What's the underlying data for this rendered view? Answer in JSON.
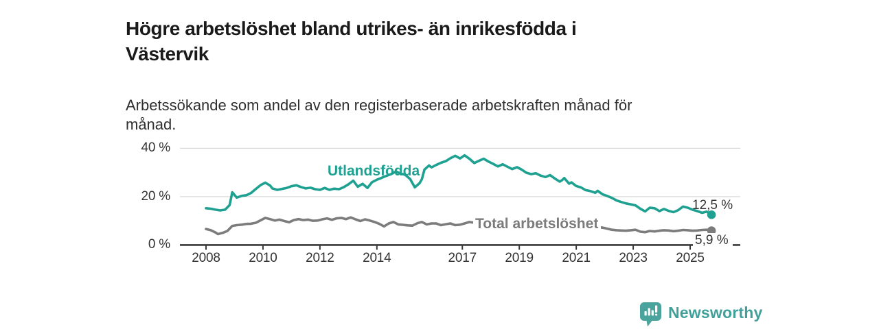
{
  "header": {
    "title_lines": [
      "Högre arbetslöshet bland utrikes- än inrikesfödda i",
      "Västervik"
    ],
    "subtitle_lines": [
      "Arbetssökande som andel av den registerbaserade arbetskraften månad för",
      "månad."
    ]
  },
  "chart_data": {
    "type": "line",
    "title": "Högre arbetslöshet bland utrikes- än inrikesfödda i Västervik",
    "subtitle": "Arbetssökande som andel av den registerbaserade arbetskraften månad för månad.",
    "unit": "%",
    "xlabel": "",
    "ylabel": "",
    "ylim": [
      0,
      40
    ],
    "grid": "horizontal",
    "legend": "inline-labels",
    "y_ticks": [
      {
        "value": 0,
        "label": "0 %"
      },
      {
        "value": 20,
        "label": "20 %"
      },
      {
        "value": 40,
        "label": "40 %"
      }
    ],
    "x_ticks": [
      {
        "value": 2008,
        "label": "2008"
      },
      {
        "value": 2010,
        "label": "2010"
      },
      {
        "value": 2012,
        "label": "2012"
      },
      {
        "value": 2014,
        "label": "2014"
      },
      {
        "value": 2017,
        "label": "2017"
      },
      {
        "value": 2019,
        "label": "2019"
      },
      {
        "value": 2021,
        "label": "2021"
      },
      {
        "value": 2023,
        "label": "2023"
      },
      {
        "value": 2025,
        "label": "2025"
      }
    ],
    "series": [
      {
        "name": "Utlandsfödda",
        "color": "#1FA191",
        "end_label": "12,5 %",
        "end_value": 12.5,
        "points": [
          [
            2008.0,
            15.2
          ],
          [
            2008.17,
            15.0
          ],
          [
            2008.33,
            14.6
          ],
          [
            2008.5,
            14.3
          ],
          [
            2008.67,
            14.6
          ],
          [
            2008.83,
            16.5
          ],
          [
            2008.92,
            21.8
          ],
          [
            2009.08,
            19.6
          ],
          [
            2009.25,
            20.3
          ],
          [
            2009.42,
            20.6
          ],
          [
            2009.58,
            21.5
          ],
          [
            2009.75,
            23.2
          ],
          [
            2009.92,
            24.8
          ],
          [
            2010.08,
            25.8
          ],
          [
            2010.25,
            24.6
          ],
          [
            2010.33,
            23.4
          ],
          [
            2010.5,
            22.8
          ],
          [
            2010.67,
            23.2
          ],
          [
            2010.83,
            23.6
          ],
          [
            2011.0,
            24.3
          ],
          [
            2011.17,
            24.7
          ],
          [
            2011.33,
            24.0
          ],
          [
            2011.5,
            23.4
          ],
          [
            2011.67,
            23.7
          ],
          [
            2011.83,
            23.1
          ],
          [
            2012.0,
            22.8
          ],
          [
            2012.17,
            23.6
          ],
          [
            2012.33,
            22.8
          ],
          [
            2012.5,
            23.3
          ],
          [
            2012.67,
            23.1
          ],
          [
            2012.83,
            23.9
          ],
          [
            2013.0,
            25.1
          ],
          [
            2013.17,
            26.6
          ],
          [
            2013.33,
            24.1
          ],
          [
            2013.5,
            25.3
          ],
          [
            2013.67,
            23.6
          ],
          [
            2013.83,
            26.0
          ],
          [
            2014.0,
            27.0
          ],
          [
            2014.17,
            27.8
          ],
          [
            2014.33,
            28.6
          ],
          [
            2014.5,
            29.3
          ],
          [
            2014.67,
            30.4
          ],
          [
            2014.83,
            29.6
          ],
          [
            2015.0,
            29.0
          ],
          [
            2015.17,
            27.3
          ],
          [
            2015.33,
            23.9
          ],
          [
            2015.5,
            25.6
          ],
          [
            2015.58,
            27.2
          ],
          [
            2015.67,
            31.2
          ],
          [
            2015.83,
            32.9
          ],
          [
            2015.92,
            32.1
          ],
          [
            2016.08,
            33.1
          ],
          [
            2016.25,
            34.0
          ],
          [
            2016.42,
            34.7
          ],
          [
            2016.58,
            35.9
          ],
          [
            2016.75,
            36.9
          ],
          [
            2016.92,
            35.8
          ],
          [
            2017.08,
            37.1
          ],
          [
            2017.25,
            35.7
          ],
          [
            2017.42,
            33.9
          ],
          [
            2017.58,
            34.8
          ],
          [
            2017.75,
            35.7
          ],
          [
            2017.92,
            34.5
          ],
          [
            2018.08,
            33.6
          ],
          [
            2018.25,
            32.5
          ],
          [
            2018.42,
            33.4
          ],
          [
            2018.58,
            32.4
          ],
          [
            2018.75,
            31.4
          ],
          [
            2018.92,
            32.2
          ],
          [
            2019.08,
            31.2
          ],
          [
            2019.25,
            29.9
          ],
          [
            2019.42,
            29.3
          ],
          [
            2019.58,
            29.7
          ],
          [
            2019.75,
            28.7
          ],
          [
            2019.92,
            28.1
          ],
          [
            2020.08,
            28.9
          ],
          [
            2020.25,
            27.5
          ],
          [
            2020.42,
            26.2
          ],
          [
            2020.5,
            26.8
          ],
          [
            2020.58,
            27.7
          ],
          [
            2020.75,
            25.4
          ],
          [
            2020.83,
            25.9
          ],
          [
            2021.0,
            24.4
          ],
          [
            2021.17,
            23.8
          ],
          [
            2021.33,
            22.7
          ],
          [
            2021.5,
            22.3
          ],
          [
            2021.67,
            21.6
          ],
          [
            2021.75,
            22.4
          ],
          [
            2021.92,
            21.0
          ],
          [
            2022.08,
            20.3
          ],
          [
            2022.25,
            19.5
          ],
          [
            2022.42,
            18.4
          ],
          [
            2022.58,
            17.8
          ],
          [
            2022.75,
            17.2
          ],
          [
            2022.92,
            16.8
          ],
          [
            2023.08,
            16.4
          ],
          [
            2023.25,
            15.0
          ],
          [
            2023.42,
            13.9
          ],
          [
            2023.58,
            15.4
          ],
          [
            2023.75,
            15.2
          ],
          [
            2023.92,
            14.0
          ],
          [
            2024.08,
            14.9
          ],
          [
            2024.25,
            14.1
          ],
          [
            2024.42,
            13.6
          ],
          [
            2024.58,
            14.4
          ],
          [
            2024.75,
            15.9
          ],
          [
            2024.92,
            15.4
          ],
          [
            2025.08,
            14.6
          ],
          [
            2025.25,
            14.0
          ],
          [
            2025.42,
            13.3
          ],
          [
            2025.58,
            13.8
          ],
          [
            2025.75,
            12.5
          ]
        ]
      },
      {
        "name": "Total arbetslöshet",
        "color": "#7C7C7C",
        "end_label": "5,9 %",
        "end_value": 5.9,
        "points": [
          [
            2008.0,
            6.6
          ],
          [
            2008.17,
            6.1
          ],
          [
            2008.33,
            5.2
          ],
          [
            2008.42,
            4.5
          ],
          [
            2008.58,
            5.0
          ],
          [
            2008.75,
            5.8
          ],
          [
            2008.92,
            7.9
          ],
          [
            2009.08,
            8.2
          ],
          [
            2009.25,
            8.4
          ],
          [
            2009.42,
            8.7
          ],
          [
            2009.58,
            8.8
          ],
          [
            2009.75,
            9.2
          ],
          [
            2009.92,
            10.2
          ],
          [
            2010.08,
            11.2
          ],
          [
            2010.25,
            10.7
          ],
          [
            2010.42,
            10.1
          ],
          [
            2010.58,
            10.5
          ],
          [
            2010.75,
            9.9
          ],
          [
            2010.92,
            9.4
          ],
          [
            2011.08,
            10.3
          ],
          [
            2011.25,
            10.7
          ],
          [
            2011.42,
            10.3
          ],
          [
            2011.58,
            10.5
          ],
          [
            2011.75,
            10.0
          ],
          [
            2011.92,
            10.1
          ],
          [
            2012.08,
            10.6
          ],
          [
            2012.25,
            11.0
          ],
          [
            2012.42,
            10.4
          ],
          [
            2012.58,
            11.0
          ],
          [
            2012.75,
            11.2
          ],
          [
            2012.92,
            10.7
          ],
          [
            2013.08,
            11.4
          ],
          [
            2013.25,
            10.6
          ],
          [
            2013.42,
            9.9
          ],
          [
            2013.58,
            10.6
          ],
          [
            2013.75,
            10.1
          ],
          [
            2013.92,
            9.5
          ],
          [
            2014.08,
            8.8
          ],
          [
            2014.25,
            7.7
          ],
          [
            2014.42,
            8.9
          ],
          [
            2014.58,
            9.5
          ],
          [
            2014.75,
            8.5
          ],
          [
            2014.92,
            8.3
          ],
          [
            2015.08,
            8.1
          ],
          [
            2015.25,
            8.0
          ],
          [
            2015.42,
            9.0
          ],
          [
            2015.58,
            9.5
          ],
          [
            2015.75,
            8.5
          ],
          [
            2015.92,
            8.9
          ],
          [
            2016.08,
            8.9
          ],
          [
            2016.25,
            8.2
          ],
          [
            2016.42,
            8.6
          ],
          [
            2016.58,
            8.9
          ],
          [
            2016.75,
            8.2
          ],
          [
            2016.92,
            8.4
          ],
          [
            2017.08,
            8.9
          ],
          [
            2017.25,
            9.5
          ],
          [
            2017.42,
            9.2
          ],
          [
            2017.58,
            9.0
          ],
          [
            2017.75,
            8.9
          ],
          [
            2018.0,
            8.8
          ],
          [
            2018.5,
            8.5
          ],
          [
            2019.0,
            8.4
          ],
          [
            2019.5,
            8.3
          ],
          [
            2020.0,
            8.8
          ],
          [
            2020.5,
            9.6
          ],
          [
            2021.0,
            9.0
          ],
          [
            2021.5,
            8.0
          ],
          [
            2022.0,
            7.0
          ],
          [
            2022.25,
            6.3
          ],
          [
            2022.42,
            6.1
          ],
          [
            2022.58,
            6.0
          ],
          [
            2022.75,
            5.9
          ],
          [
            2022.92,
            6.1
          ],
          [
            2023.08,
            6.3
          ],
          [
            2023.25,
            5.5
          ],
          [
            2023.42,
            5.3
          ],
          [
            2023.58,
            5.8
          ],
          [
            2023.75,
            5.6
          ],
          [
            2023.92,
            5.9
          ],
          [
            2024.08,
            6.1
          ],
          [
            2024.25,
            6.0
          ],
          [
            2024.42,
            5.7
          ],
          [
            2024.58,
            5.9
          ],
          [
            2024.75,
            6.2
          ],
          [
            2024.92,
            6.1
          ],
          [
            2025.08,
            5.9
          ],
          [
            2025.25,
            6.0
          ],
          [
            2025.42,
            6.2
          ],
          [
            2025.58,
            6.3
          ],
          [
            2025.75,
            5.9
          ]
        ]
      }
    ],
    "colors": {
      "axis": "#3A3A3A",
      "gridline": "#DADADA",
      "tick_text": "#333333"
    }
  },
  "footer": {
    "brand": "Newsworthy",
    "brand_color": "#41A09A",
    "logo_icon": "bar-chart-speech-bubble-icon"
  }
}
